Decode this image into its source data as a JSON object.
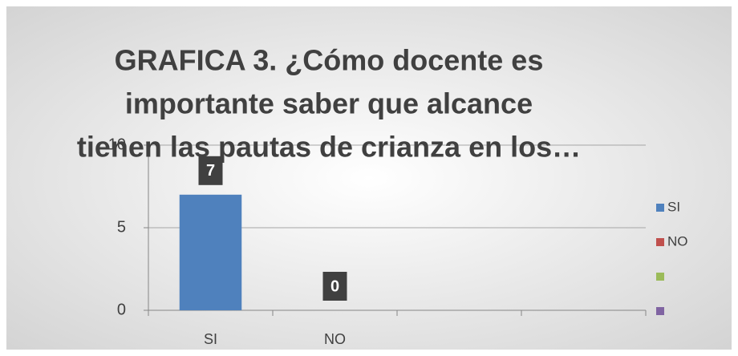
{
  "chart_data": {
    "type": "bar",
    "title_lines": [
      "GRAFICA 3. ¿Cómo docente es",
      "importante saber que alcance",
      "tienen las pautas de crianza en los…"
    ],
    "categories": [
      "SI",
      "NO",
      null,
      null
    ],
    "values": [
      7,
      0,
      null,
      null
    ],
    "value_colors": [
      "#4f81bd",
      "#c0504d",
      "#9bbb59",
      "#8064a2"
    ],
    "ylim": [
      0,
      10
    ],
    "yticks": [
      0,
      5,
      10
    ],
    "grid": true,
    "legend_position": "right",
    "legend": [
      {
        "name": "SI",
        "color": "#4f81bd"
      },
      {
        "name": "NO",
        "color": "#c0504d"
      },
      {
        "name": null,
        "color": "#9bbb59"
      },
      {
        "name": null,
        "color": "#8064a2"
      }
    ]
  }
}
